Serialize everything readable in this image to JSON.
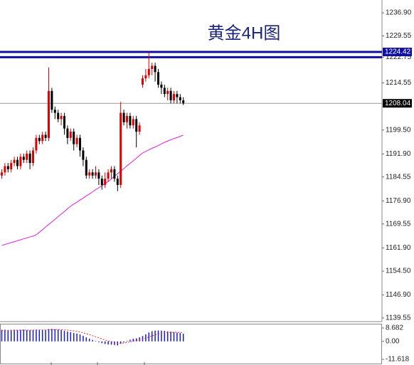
{
  "chart_data": {
    "type": "candlestick",
    "title": "黄金4H图",
    "open": [
      1185,
      1186,
      1188,
      1187,
      1189,
      1190,
      1188,
      1191,
      1190,
      1192,
      1189,
      1193,
      1197,
      1196,
      1198,
      1197,
      1212,
      1206,
      1205,
      1203,
      1204,
      1200,
      1197,
      1199,
      1195,
      1197,
      1193,
      1190,
      1185,
      1186,
      1185,
      1186,
      1184,
      1182,
      1184,
      1186,
      1187,
      1184,
      1182,
      1205,
      1202,
      1204,
      1201,
      1203,
      1199,
      1214,
      1216,
      1217,
      1219,
      1220,
      1218,
      1214,
      1213,
      1211,
      1212,
      1209,
      1211,
      1210,
      1209
    ],
    "high": [
      1187,
      1189,
      1189,
      1190,
      1191,
      1191,
      1192,
      1192,
      1193,
      1193,
      1194,
      1198,
      1198,
      1199,
      1199,
      1219.5,
      1213,
      1207,
      1206,
      1205,
      1205,
      1201,
      1200,
      1200,
      1198,
      1198,
      1194,
      1191,
      1187,
      1187,
      1188,
      1187,
      1185,
      1186,
      1187,
      1188,
      1188,
      1185,
      1208.5,
      1206,
      1205,
      1205,
      1204,
      1204,
      1202,
      1217,
      1219,
      1224.4,
      1221,
      1221,
      1219,
      1215,
      1214,
      1213,
      1213,
      1212,
      1212,
      1211,
      1210
    ],
    "low": [
      1184,
      1185,
      1186,
      1186,
      1188,
      1187,
      1187,
      1189,
      1189,
      1187,
      1188,
      1192,
      1195,
      1195,
      1196,
      1196,
      1205,
      1203,
      1202,
      1201,
      1198,
      1195,
      1196,
      1193,
      1194,
      1191,
      1188,
      1184,
      1184,
      1184,
      1184,
      1182,
      1180.5,
      1181,
      1183,
      1184,
      1183,
      1180,
      1181,
      1201,
      1200,
      1200,
      1200,
      1194,
      1198,
      1213,
      1215,
      1216,
      1217,
      1215,
      1213,
      1211,
      1210,
      1209,
      1208,
      1208,
      1208,
      1208,
      1207.5
    ],
    "close": [
      1186,
      1188,
      1187,
      1189,
      1190,
      1188,
      1191,
      1190,
      1192,
      1189,
      1193,
      1197,
      1196,
      1198,
      1197,
      1212,
      1206,
      1205,
      1203,
      1204,
      1200,
      1197,
      1199,
      1195,
      1197,
      1193,
      1190,
      1185,
      1186,
      1185,
      1186,
      1184,
      1182,
      1184,
      1186,
      1187,
      1184,
      1182,
      1205,
      1202,
      1204,
      1201,
      1203,
      1199,
      1201,
      1216,
      1217,
      1219,
      1220,
      1218,
      1214,
      1213,
      1211,
      1212,
      1209,
      1211,
      1210,
      1209,
      1208.04
    ],
    "up_color": "#e00000",
    "down_color": "#000000",
    "moving_average": {
      "color": "#e020e0",
      "values": [
        1162.7,
        1163.0,
        1163.3,
        1163.6,
        1163.9,
        1164.2,
        1164.5,
        1164.8,
        1165.1,
        1165.4,
        1165.7,
        1166.1,
        1166.9,
        1167.7,
        1168.6,
        1169.4,
        1170.2,
        1171.0,
        1171.9,
        1172.7,
        1173.5,
        1174.4,
        1175.2,
        1175.9,
        1176.5,
        1177.2,
        1177.8,
        1178.5,
        1179.1,
        1179.8,
        1180.5,
        1181.1,
        1181.8,
        1182.4,
        1183.1,
        1183.9,
        1184.8,
        1185.6,
        1186.4,
        1187.2,
        1188.1,
        1188.9,
        1189.7,
        1190.5,
        1191.4,
        1192.2,
        1192.7,
        1193.2,
        1193.7,
        1194.1,
        1194.6,
        1195.1,
        1195.6,
        1196.0,
        1196.4,
        1196.8,
        1197.1,
        1197.5,
        1197.9
      ]
    },
    "ylim": [
      1138.4,
      1241.0
    ],
    "yticks": [
      {
        "value": 1236.9,
        "label": "1236.90"
      },
      1229.55,
      1222.75,
      1214.55,
      {
        "value": 1199.5,
        "label": "1199.50"
      },
      {
        "value": 1191.9,
        "label": "1191.90"
      },
      1184.55,
      {
        "value": 1176.9,
        "label": "1176.90"
      },
      1169.55,
      {
        "value": 1161.9,
        "label": "1161.90"
      },
      {
        "value": 1154.5,
        "label": "1154.50"
      },
      {
        "value": 1146.9,
        "label": "1146.90"
      },
      1139.55
    ],
    "resistance_lines": {
      "color": "#1010a0",
      "values": [
        1224.42,
        1222.75
      ]
    },
    "current_price": 1208.04,
    "macd": {
      "hist_color": "#1a1ad0",
      "signal_color": "#e03030",
      "ylim": [
        -11.618,
        8.682
      ],
      "yticks": [
        8.682,
        {
          "value": 0,
          "label": "0.00"
        },
        -11.618
      ],
      "histogram": [
        7.5,
        7.6,
        7.4,
        7.5,
        7.6,
        7.4,
        7.5,
        7.6,
        7.3,
        7.2,
        7.4,
        7.6,
        7.5,
        7.4,
        7.3,
        8.0,
        8.1,
        7.9,
        7.7,
        7.4,
        6.9,
        6.4,
        6.0,
        5.5,
        5.1,
        4.5,
        3.6,
        2.6,
        1.8,
        1.0,
        0.3,
        -0.5,
        -1.2,
        -1.7,
        -2.0,
        -2.1,
        -2.3,
        -2.6,
        -1.6,
        -0.6,
        0.3,
        1.1,
        1.7,
        2.0,
        2.6,
        3.5,
        4.6,
        5.8,
        6.6,
        7.0,
        7.1,
        7.0,
        6.8,
        6.5,
        6.3,
        6.0,
        5.7,
        5.4,
        5.0
      ],
      "signal": [
        7.0,
        7.1,
        7.1,
        7.2,
        7.2,
        7.3,
        7.3,
        7.3,
        7.3,
        7.3,
        7.3,
        7.4,
        7.4,
        7.4,
        7.4,
        7.5,
        7.6,
        7.6,
        7.7,
        7.6,
        7.5,
        7.3,
        7.1,
        6.8,
        6.5,
        6.1,
        5.6,
        5.0,
        4.4,
        3.7,
        3.0,
        2.3,
        1.6,
        0.9,
        0.3,
        -0.2,
        -0.6,
        -1.0,
        -1.1,
        -1.0,
        -0.7,
        -0.3,
        0.2,
        0.6,
        1.0,
        1.5,
        2.1,
        2.8,
        3.6,
        4.3,
        4.9,
        5.3,
        5.6,
        5.8,
        5.9,
        5.9,
        5.9,
        5.8,
        5.7
      ]
    }
  }
}
